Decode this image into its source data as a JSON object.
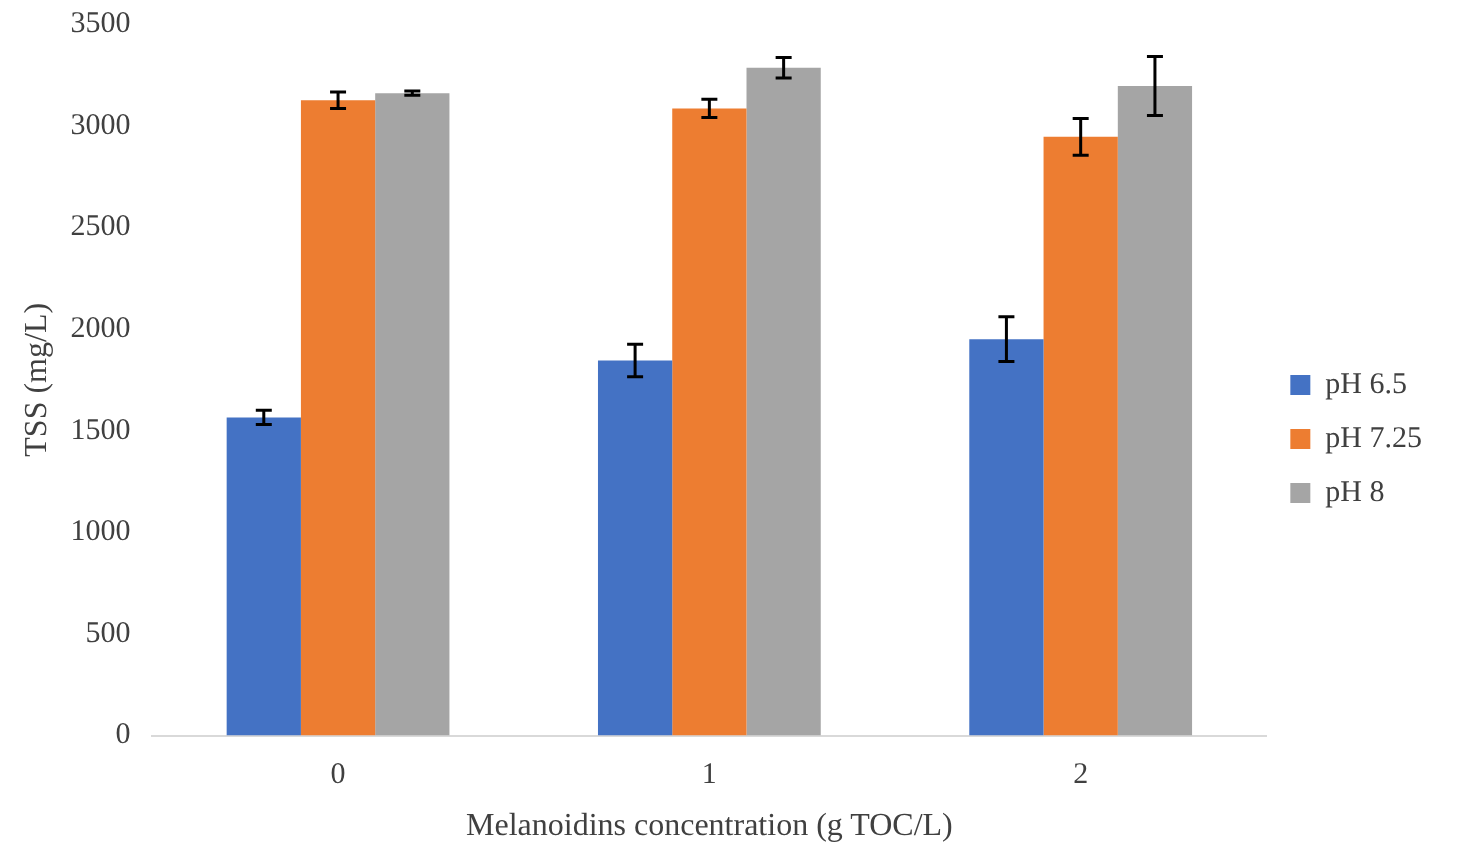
{
  "chart_data": {
    "type": "bar",
    "xlabel": "Melanoidins concentration (g TOC/L)",
    "ylabel": "TSS (mg/L)",
    "categories": [
      "0",
      "1",
      "2"
    ],
    "series": [
      {
        "name": "pH 6.5",
        "color": "#4472c4",
        "values": [
          1565,
          1845,
          1950
        ],
        "errors": [
          35,
          80,
          110
        ]
      },
      {
        "name": "pH 7.25",
        "color": "#ed7d31",
        "values": [
          3125,
          3085,
          2945
        ],
        "errors": [
          40,
          45,
          90
        ]
      },
      {
        "name": "pH 8",
        "color": "#a5a5a5",
        "values": [
          3160,
          3285,
          3195
        ],
        "errors": [
          10,
          50,
          145
        ]
      }
    ],
    "ylim": [
      0,
      3500
    ],
    "yticks": [
      0,
      500,
      1000,
      1500,
      2000,
      2500,
      3000,
      3500
    ],
    "grid": false,
    "legend": "right"
  }
}
